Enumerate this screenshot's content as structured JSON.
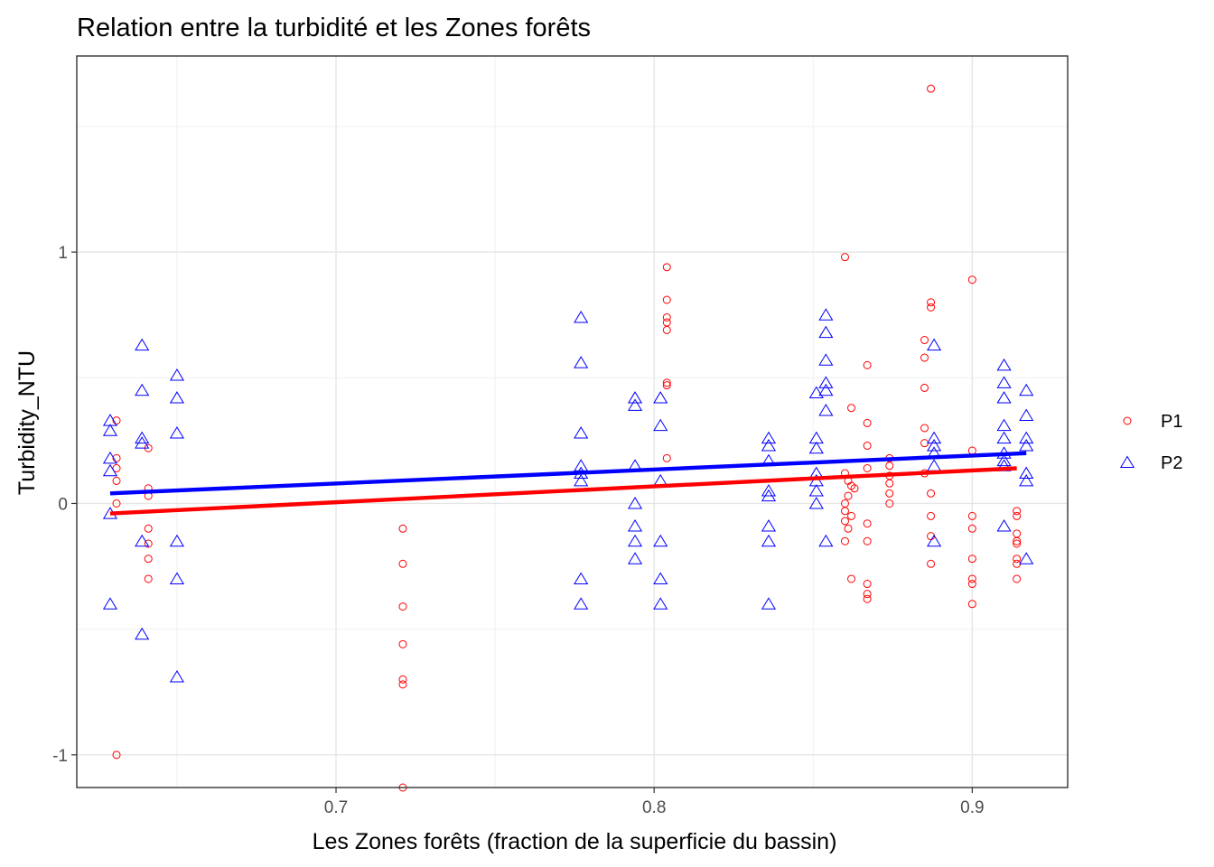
{
  "chart_data": {
    "type": "scatter",
    "title": "Relation entre la turbidité et les Zones forêts",
    "xlabel": "Les Zones forêts (fraction de la superficie du bassin)",
    "ylabel": "Turbidity_NTU",
    "xlim": [
      0.6185,
      0.93
    ],
    "ylim": [
      -1.13,
      1.78
    ],
    "x_ticks": [
      {
        "value": 0.7,
        "label": "0.7"
      },
      {
        "value": 0.8,
        "label": "0.8"
      },
      {
        "value": 0.9,
        "label": "0.9"
      }
    ],
    "y_ticks": [
      {
        "value": -1,
        "label": "-1"
      },
      {
        "value": 0,
        "label": "0"
      },
      {
        "value": 1,
        "label": "1"
      }
    ],
    "x_minor_grid": [
      0.65,
      0.75,
      0.85
    ],
    "y_minor_grid": [
      -0.5,
      0.5,
      1.5
    ],
    "grid": true,
    "legend_position": "right",
    "series": [
      {
        "name": "P1",
        "marker": "circle",
        "color": "#ff0000",
        "trend": {
          "x": [
            0.629,
            0.914
          ],
          "y": [
            -0.04,
            0.14
          ]
        },
        "points": [
          [
            0.631,
            0.33
          ],
          [
            0.631,
            0.18
          ],
          [
            0.631,
            0.14
          ],
          [
            0.631,
            0.09
          ],
          [
            0.631,
            0.0
          ],
          [
            0.631,
            -1.0
          ],
          [
            0.641,
            0.22
          ],
          [
            0.641,
            0.06
          ],
          [
            0.641,
            0.03
          ],
          [
            0.641,
            -0.1
          ],
          [
            0.641,
            -0.16
          ],
          [
            0.641,
            -0.22
          ],
          [
            0.641,
            -0.3
          ],
          [
            0.721,
            -0.1
          ],
          [
            0.721,
            -0.24
          ],
          [
            0.721,
            -0.41
          ],
          [
            0.721,
            -0.56
          ],
          [
            0.721,
            -0.7
          ],
          [
            0.721,
            -0.72
          ],
          [
            0.721,
            -1.13
          ],
          [
            0.804,
            0.94
          ],
          [
            0.804,
            0.81
          ],
          [
            0.804,
            0.74
          ],
          [
            0.804,
            0.72
          ],
          [
            0.804,
            0.69
          ],
          [
            0.804,
            0.48
          ],
          [
            0.804,
            0.47
          ],
          [
            0.804,
            0.18
          ],
          [
            0.86,
            0.98
          ],
          [
            0.862,
            0.38
          ],
          [
            0.86,
            0.12
          ],
          [
            0.861,
            0.09
          ],
          [
            0.862,
            0.07
          ],
          [
            0.863,
            0.06
          ],
          [
            0.861,
            0.03
          ],
          [
            0.86,
            0.0
          ],
          [
            0.86,
            -0.03
          ],
          [
            0.862,
            -0.05
          ],
          [
            0.86,
            -0.07
          ],
          [
            0.861,
            -0.1
          ],
          [
            0.86,
            -0.15
          ],
          [
            0.862,
            -0.3
          ],
          [
            0.867,
            0.55
          ],
          [
            0.867,
            0.32
          ],
          [
            0.867,
            0.23
          ],
          [
            0.867,
            0.14
          ],
          [
            0.867,
            -0.08
          ],
          [
            0.867,
            -0.15
          ],
          [
            0.867,
            -0.32
          ],
          [
            0.867,
            -0.36
          ],
          [
            0.867,
            -0.38
          ],
          [
            0.874,
            0.18
          ],
          [
            0.874,
            0.15
          ],
          [
            0.874,
            0.11
          ],
          [
            0.874,
            0.08
          ],
          [
            0.874,
            0.04
          ],
          [
            0.874,
            0.0
          ],
          [
            0.885,
            0.65
          ],
          [
            0.885,
            0.58
          ],
          [
            0.885,
            0.46
          ],
          [
            0.885,
            0.3
          ],
          [
            0.885,
            0.24
          ],
          [
            0.885,
            0.12
          ],
          [
            0.887,
            1.65
          ],
          [
            0.887,
            0.8
          ],
          [
            0.887,
            0.78
          ],
          [
            0.887,
            0.04
          ],
          [
            0.887,
            -0.05
          ],
          [
            0.887,
            -0.13
          ],
          [
            0.887,
            -0.24
          ],
          [
            0.9,
            0.89
          ],
          [
            0.9,
            0.21
          ],
          [
            0.9,
            -0.05
          ],
          [
            0.9,
            -0.1
          ],
          [
            0.9,
            -0.22
          ],
          [
            0.9,
            -0.3
          ],
          [
            0.9,
            -0.32
          ],
          [
            0.9,
            -0.4
          ],
          [
            0.914,
            -0.03
          ],
          [
            0.914,
            -0.05
          ],
          [
            0.914,
            -0.12
          ],
          [
            0.914,
            -0.15
          ],
          [
            0.914,
            -0.16
          ],
          [
            0.914,
            -0.22
          ],
          [
            0.914,
            -0.24
          ],
          [
            0.914,
            -0.3
          ]
        ]
      },
      {
        "name": "P2",
        "marker": "triangle",
        "color": "#0000ff",
        "trend": {
          "x": [
            0.629,
            0.917
          ],
          "y": [
            0.04,
            0.2
          ]
        },
        "points": [
          [
            0.629,
            0.33
          ],
          [
            0.629,
            0.29
          ],
          [
            0.629,
            0.18
          ],
          [
            0.629,
            0.13
          ],
          [
            0.629,
            -0.04
          ],
          [
            0.629,
            -0.4
          ],
          [
            0.639,
            0.63
          ],
          [
            0.639,
            0.45
          ],
          [
            0.639,
            0.26
          ],
          [
            0.639,
            0.24
          ],
          [
            0.639,
            -0.15
          ],
          [
            0.639,
            -0.52
          ],
          [
            0.65,
            0.51
          ],
          [
            0.65,
            0.42
          ],
          [
            0.65,
            0.28
          ],
          [
            0.65,
            -0.15
          ],
          [
            0.65,
            -0.3
          ],
          [
            0.65,
            -0.69
          ],
          [
            0.777,
            0.74
          ],
          [
            0.777,
            0.56
          ],
          [
            0.777,
            0.28
          ],
          [
            0.777,
            0.15
          ],
          [
            0.777,
            0.12
          ],
          [
            0.777,
            0.09
          ],
          [
            0.777,
            -0.3
          ],
          [
            0.777,
            -0.4
          ],
          [
            0.794,
            0.42
          ],
          [
            0.794,
            0.39
          ],
          [
            0.794,
            0.15
          ],
          [
            0.794,
            0.0
          ],
          [
            0.794,
            -0.09
          ],
          [
            0.794,
            -0.15
          ],
          [
            0.794,
            -0.22
          ],
          [
            0.802,
            0.42
          ],
          [
            0.802,
            0.31
          ],
          [
            0.802,
            0.09
          ],
          [
            0.802,
            -0.15
          ],
          [
            0.802,
            -0.3
          ],
          [
            0.802,
            -0.4
          ],
          [
            0.836,
            0.26
          ],
          [
            0.836,
            0.23
          ],
          [
            0.836,
            0.17
          ],
          [
            0.836,
            0.05
          ],
          [
            0.836,
            0.03
          ],
          [
            0.836,
            -0.09
          ],
          [
            0.836,
            -0.15
          ],
          [
            0.836,
            -0.4
          ],
          [
            0.851,
            0.44
          ],
          [
            0.851,
            0.26
          ],
          [
            0.851,
            0.22
          ],
          [
            0.851,
            0.12
          ],
          [
            0.851,
            0.09
          ],
          [
            0.851,
            0.05
          ],
          [
            0.851,
            0.0
          ],
          [
            0.854,
            0.75
          ],
          [
            0.854,
            0.68
          ],
          [
            0.854,
            0.57
          ],
          [
            0.854,
            0.48
          ],
          [
            0.854,
            0.45
          ],
          [
            0.854,
            0.37
          ],
          [
            0.854,
            -0.15
          ],
          [
            0.888,
            0.63
          ],
          [
            0.888,
            0.26
          ],
          [
            0.888,
            0.23
          ],
          [
            0.888,
            0.2
          ],
          [
            0.888,
            0.15
          ],
          [
            0.888,
            -0.15
          ],
          [
            0.91,
            0.55
          ],
          [
            0.91,
            0.48
          ],
          [
            0.91,
            0.42
          ],
          [
            0.91,
            0.31
          ],
          [
            0.91,
            0.26
          ],
          [
            0.91,
            0.2
          ],
          [
            0.91,
            0.17
          ],
          [
            0.91,
            0.15
          ],
          [
            0.91,
            -0.09
          ],
          [
            0.917,
            0.45
          ],
          [
            0.917,
            0.35
          ],
          [
            0.917,
            0.26
          ],
          [
            0.917,
            0.23
          ],
          [
            0.917,
            0.12
          ],
          [
            0.917,
            0.09
          ],
          [
            0.917,
            -0.22
          ]
        ]
      }
    ]
  }
}
